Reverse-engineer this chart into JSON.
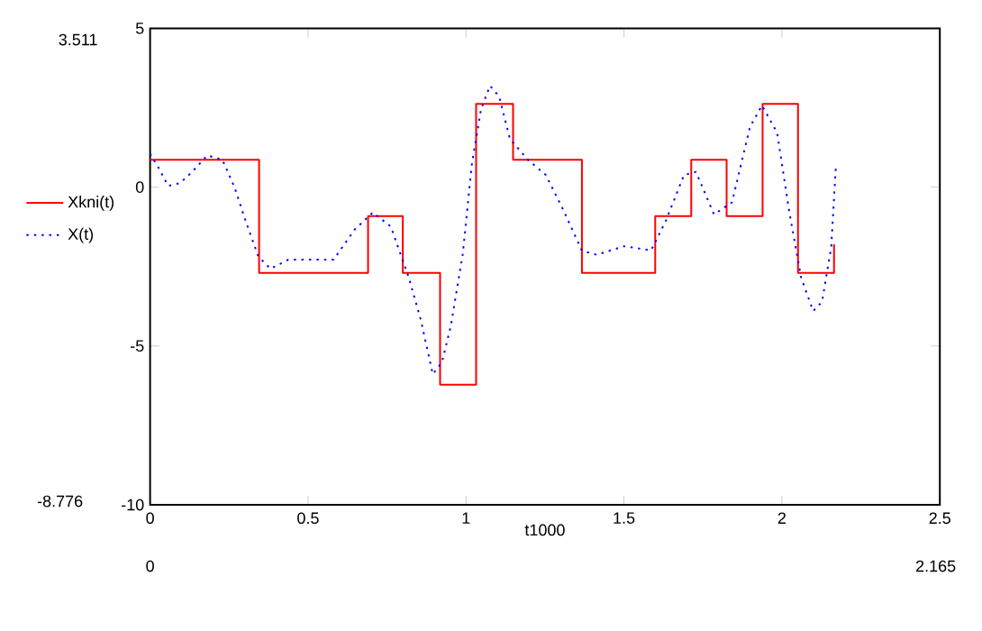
{
  "chart_data": {
    "type": "line",
    "xlabel": "t1000",
    "xlim": [
      0,
      2.5
    ],
    "xticks": [
      0,
      0.5,
      1,
      1.5,
      2,
      2.5
    ],
    "ylim": [
      -10,
      5
    ],
    "yticks": [
      -10,
      -5,
      0,
      5
    ],
    "legend": "left",
    "grid": false,
    "marker": "none",
    "annotations": [
      "3.511",
      "-8.776",
      "0",
      "2.165"
    ],
    "series": [
      {
        "name": "Xkni(t)",
        "type": "step",
        "color": "#ff0000",
        "line_style": "solid",
        "x": [
          0,
          0.345,
          0.69,
          0.8,
          0.918,
          1.032,
          1.149,
          1.367,
          1.599,
          1.713,
          1.825,
          1.939,
          2.051,
          2.165
        ],
        "values": [
          0.86,
          -2.7,
          -0.91,
          -2.7,
          -6.22,
          2.62,
          0.86,
          -2.7,
          -0.91,
          0.86,
          -0.91,
          2.62,
          -2.7,
          -1.8
        ]
      },
      {
        "name": "X(t)",
        "color": "#0000ff",
        "line_style": "dotted",
        "x": [
          0,
          0.029,
          0.057,
          0.095,
          0.133,
          0.181,
          0.229,
          0.267,
          0.305,
          0.343,
          0.381,
          0.438,
          0.514,
          0.581,
          0.648,
          0.705,
          0.762,
          0.819,
          0.857,
          0.895,
          0.924,
          0.952,
          0.99,
          1.019,
          1.048,
          1.076,
          1.105,
          1.139,
          1.196,
          1.253,
          1.31,
          1.367,
          1.414,
          1.5,
          1.586,
          1.633,
          1.69,
          1.728,
          1.785,
          1.842,
          1.899,
          1.937,
          1.985,
          2.023,
          2.061,
          2.099,
          2.127,
          2.156,
          2.171
        ],
        "values": [
          1.05,
          0.57,
          0.04,
          0.13,
          0.48,
          1.0,
          0.86,
          0,
          -1.14,
          -2.19,
          -2.57,
          -2.28,
          -2.28,
          -2.28,
          -1.33,
          -0.8,
          -1.24,
          -2.85,
          -4.18,
          -5.89,
          -5.51,
          -4.37,
          -2.09,
          0.76,
          2.47,
          3.19,
          2.85,
          1.52,
          0.86,
          0.38,
          -0.76,
          -2.0,
          -2.13,
          -1.86,
          -1.99,
          -1.05,
          0.38,
          0.48,
          -0.86,
          -0.48,
          1.9,
          2.57,
          1.71,
          -0.76,
          -2.85,
          -3.9,
          -3.61,
          -1.9,
          0.67
        ]
      }
    ]
  }
}
